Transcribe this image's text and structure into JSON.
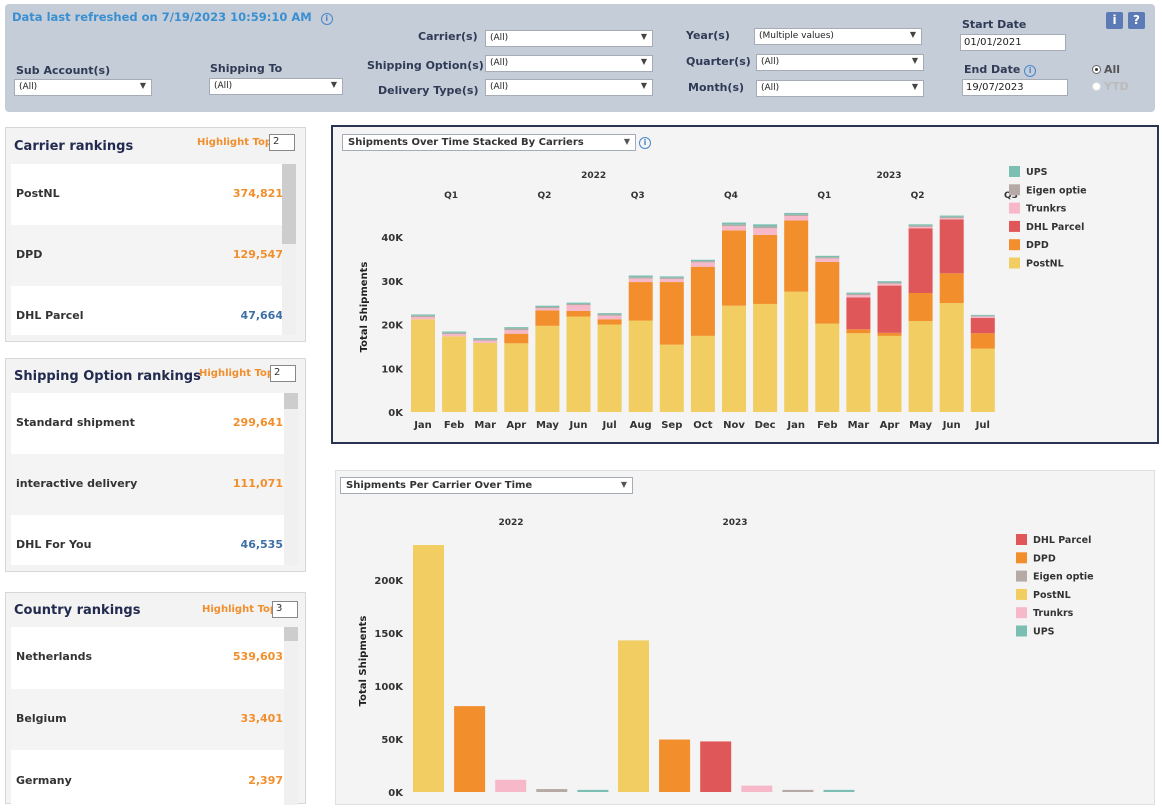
{
  "header": {
    "refreshed": "Data last refreshed on 7/19/2023 10:59:10 AM",
    "info_btn": "i",
    "help_btn": "?"
  },
  "filters": {
    "sub_account": {
      "label": "Sub Account(s)",
      "value": "(All)"
    },
    "shipping_to": {
      "label": "Shipping To",
      "value": "(All)"
    },
    "carriers": {
      "label": "Carrier(s)",
      "value": "(All)"
    },
    "shipping_option": {
      "label": "Shipping Option(s)",
      "value": "(All)"
    },
    "delivery_type": {
      "label": "Delivery Type(s)",
      "value": "(All)"
    },
    "year": {
      "label": "Year(s)",
      "value": "(Multiple values)"
    },
    "quarter": {
      "label": "Quarter(s)",
      "value": "(All)"
    },
    "month": {
      "label": "Month(s)",
      "value": "(All)"
    },
    "start_date": {
      "label": "Start Date",
      "value": "01/01/2021"
    },
    "end_date": {
      "label": "End Date",
      "value": "19/07/2023"
    },
    "period_options": [
      "All",
      "YTD"
    ],
    "period_selected": "All"
  },
  "rankings": [
    {
      "title": "Carrier rankings",
      "highlight_label": "Highlight Top",
      "highlight_value": "2",
      "rows": [
        {
          "name": "PostNL",
          "value": "374,821"
        },
        {
          "name": "DPD",
          "value": "129,547"
        },
        {
          "name": "DHL Parcel",
          "value": "47,664"
        }
      ]
    },
    {
      "title": "Shipping Option  rankings",
      "highlight_label": "Highlight Top",
      "highlight_value": "2",
      "rows": [
        {
          "name": "Standard shipment",
          "value": "299,641"
        },
        {
          "name": "interactive delivery",
          "value": "111,071"
        },
        {
          "name": "DHL For You",
          "value": "46,535"
        }
      ]
    },
    {
      "title": "Country rankings",
      "highlight_label": "Highlight Top",
      "highlight_value": "3",
      "rows": [
        {
          "name": "Netherlands",
          "value": "539,603"
        },
        {
          "name": "Belgium",
          "value": "33,401"
        },
        {
          "name": "Germany",
          "value": "2,397"
        }
      ]
    }
  ],
  "colors": {
    "UPS": "#7bbfb2",
    "Eigen optie": "#b5aaa5",
    "Trunkrs": "#f7b8ca",
    "DHL Parcel": "#e05759",
    "DPD": "#f28e2b",
    "PostNL": "#f1cd62",
    "accent_orange": "#f28e2b",
    "accent_blue": "#3e6fa6"
  },
  "chart_data": [
    {
      "type": "bar",
      "stacked": true,
      "selector": "Shipments Over Time Stacked By Carriers",
      "ylabel": "Total Shipments",
      "ylim": [
        0,
        45000
      ],
      "yticks": [
        0,
        10000,
        20000,
        30000,
        40000
      ],
      "ytick_labels": [
        "0K",
        "10K",
        "20K",
        "30K",
        "40K"
      ],
      "years": [
        {
          "label": "2022",
          "start": 0,
          "count": 12
        },
        {
          "label": "2023",
          "start": 12,
          "count": 7
        }
      ],
      "quarters": [
        "Q1",
        "Q2",
        "Q3",
        "Q4",
        "Q1",
        "Q2",
        "Q3"
      ],
      "categories": [
        "Jan",
        "Feb",
        "Mar",
        "Apr",
        "May",
        "Jun",
        "Jul",
        "Aug",
        "Sep",
        "Oct",
        "Nov",
        "Dec",
        "Jan",
        "Feb",
        "Mar",
        "Apr",
        "May",
        "Jun",
        "Jul"
      ],
      "legend": [
        "UPS",
        "Eigen optie",
        "Trunkrs",
        "DHL Parcel",
        "DPD",
        "PostNL"
      ],
      "series": [
        {
          "name": "PostNL",
          "values": [
            21200,
            17300,
            15800,
            15700,
            19700,
            21800,
            20000,
            20900,
            15400,
            17400,
            24300,
            24700,
            27500,
            20200,
            18000,
            17400,
            20800,
            24900,
            14500
          ]
        },
        {
          "name": "DPD",
          "values": [
            0,
            0,
            0,
            2200,
            3500,
            1300,
            1200,
            8800,
            14300,
            15800,
            17200,
            15800,
            16300,
            14100,
            900,
            700,
            6400,
            6800,
            3500
          ]
        },
        {
          "name": "DHL Parcel",
          "values": [
            0,
            0,
            0,
            0,
            0,
            0,
            0,
            0,
            0,
            0,
            0,
            0,
            0,
            0,
            7300,
            10800,
            14800,
            12300,
            3500
          ]
        },
        {
          "name": "Trunkrs",
          "values": [
            500,
            500,
            500,
            800,
            500,
            1300,
            800,
            800,
            700,
            1000,
            1000,
            1500,
            1000,
            800,
            500,
            400,
            300,
            300,
            300
          ]
        },
        {
          "name": "Eigen optie",
          "values": [
            300,
            300,
            300,
            400,
            300,
            300,
            300,
            300,
            300,
            300,
            300,
            400,
            300,
            300,
            300,
            300,
            300,
            300,
            200
          ]
        },
        {
          "name": "UPS",
          "values": [
            300,
            300,
            300,
            300,
            300,
            300,
            300,
            400,
            300,
            300,
            500,
            500,
            400,
            300,
            300,
            300,
            300,
            300,
            200
          ]
        }
      ]
    },
    {
      "type": "bar",
      "selector": "Shipments Per Carrier Over Time",
      "ylabel": "Total Shipments",
      "ylim": [
        0,
        250000
      ],
      "yticks": [
        0,
        50000,
        100000,
        150000,
        200000
      ],
      "ytick_labels": [
        "0K",
        "50K",
        "100K",
        "150K",
        "200K"
      ],
      "legend": [
        "DHL Parcel",
        "DPD",
        "Eigen optie",
        "PostNL",
        "Trunkrs",
        "UPS"
      ],
      "groups": [
        {
          "label": "2022",
          "bars": [
            {
              "carrier": "PostNL",
              "value": 233000
            },
            {
              "carrier": "DPD",
              "value": 81000
            },
            {
              "carrier": "Trunkrs",
              "value": 11500
            },
            {
              "carrier": "Eigen optie",
              "value": 2800
            },
            {
              "carrier": "UPS",
              "value": 2000
            }
          ]
        },
        {
          "label": "2023",
          "bars": [
            {
              "carrier": "PostNL",
              "value": 143000
            },
            {
              "carrier": "DPD",
              "value": 49500
            },
            {
              "carrier": "DHL Parcel",
              "value": 47700
            },
            {
              "carrier": "Trunkrs",
              "value": 6000
            },
            {
              "carrier": "Eigen optie",
              "value": 2000
            },
            {
              "carrier": "UPS",
              "value": 2000
            }
          ]
        }
      ]
    }
  ]
}
